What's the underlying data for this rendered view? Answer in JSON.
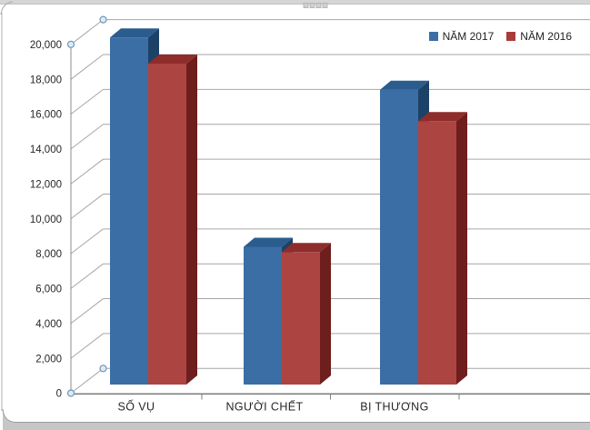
{
  "legend": {
    "items": [
      {
        "label": "NĂM 2017",
        "color": "#3B6EA4"
      },
      {
        "label": "NĂM 2016",
        "color": "#A83C3A"
      }
    ]
  },
  "chart_data": {
    "type": "bar",
    "style": "3d-clustered-column",
    "title": "",
    "xlabel": "",
    "ylabel": "",
    "categories": [
      "SỐ VỤ",
      "NGƯỜI CHẾT",
      "BỊ THƯƠNG"
    ],
    "series": [
      {
        "name": "NĂM 2017",
        "values": [
          19900,
          7900,
          16900
        ],
        "color_front": "#3B6EA4",
        "color_top": "#2B5C8E",
        "color_side": "#1D4268"
      },
      {
        "name": "NĂM 2016",
        "values": [
          18400,
          7600,
          15100
        ],
        "color_front": "#AC4442",
        "color_top": "#8E2D2B",
        "color_side": "#6E1E1D"
      }
    ],
    "ylim": [
      0,
      20000
    ],
    "ytick_step": 2000,
    "yticks": [
      "0",
      "2,000",
      "4,000",
      "6,000",
      "8,000",
      "10,000",
      "12,000",
      "14,000",
      "16,000",
      "18,000",
      "20,000"
    ],
    "grid": true,
    "legend_position": "top-right"
  }
}
